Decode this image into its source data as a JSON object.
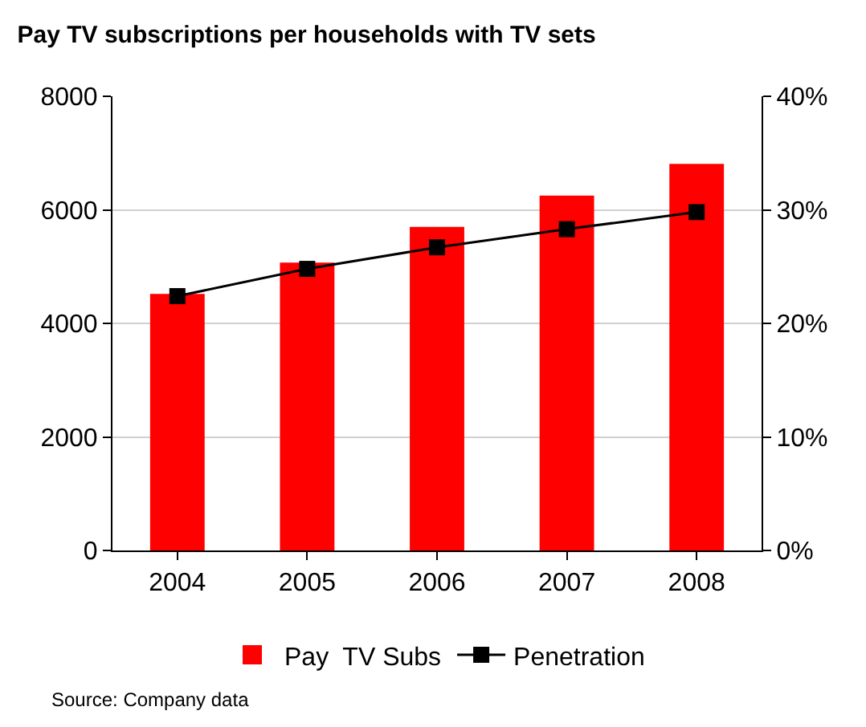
{
  "chart_data": {
    "type": "bar",
    "title": "Pay TV subscriptions per households with TV sets",
    "categories": [
      "2004",
      "2005",
      "2006",
      "2007",
      "2008"
    ],
    "series": [
      {
        "name": "Pay  TV Subs",
        "color": "#ff0000",
        "values": [
          4520,
          5070,
          5700,
          6250,
          6810
        ]
      },
      {
        "name": "Penetration",
        "type": "line",
        "axis": "y2",
        "color": "#000000",
        "marker": "square",
        "values": [
          22.4,
          24.8,
          26.7,
          28.3,
          29.8
        ]
      }
    ],
    "ylim": [
      0,
      8000
    ],
    "yticks": [
      0,
      2000,
      4000,
      6000,
      8000
    ],
    "y2lim": [
      0,
      40
    ],
    "y2ticks": [
      {
        "value": 0,
        "label": "0%"
      },
      {
        "value": 10,
        "label": "10%"
      },
      {
        "value": 20,
        "label": "20%"
      },
      {
        "value": 30,
        "label": "30%"
      },
      {
        "value": 40,
        "label": "40%"
      }
    ],
    "grid": "y",
    "legend": "bottom",
    "annotations": [
      "Source: Company data"
    ]
  }
}
